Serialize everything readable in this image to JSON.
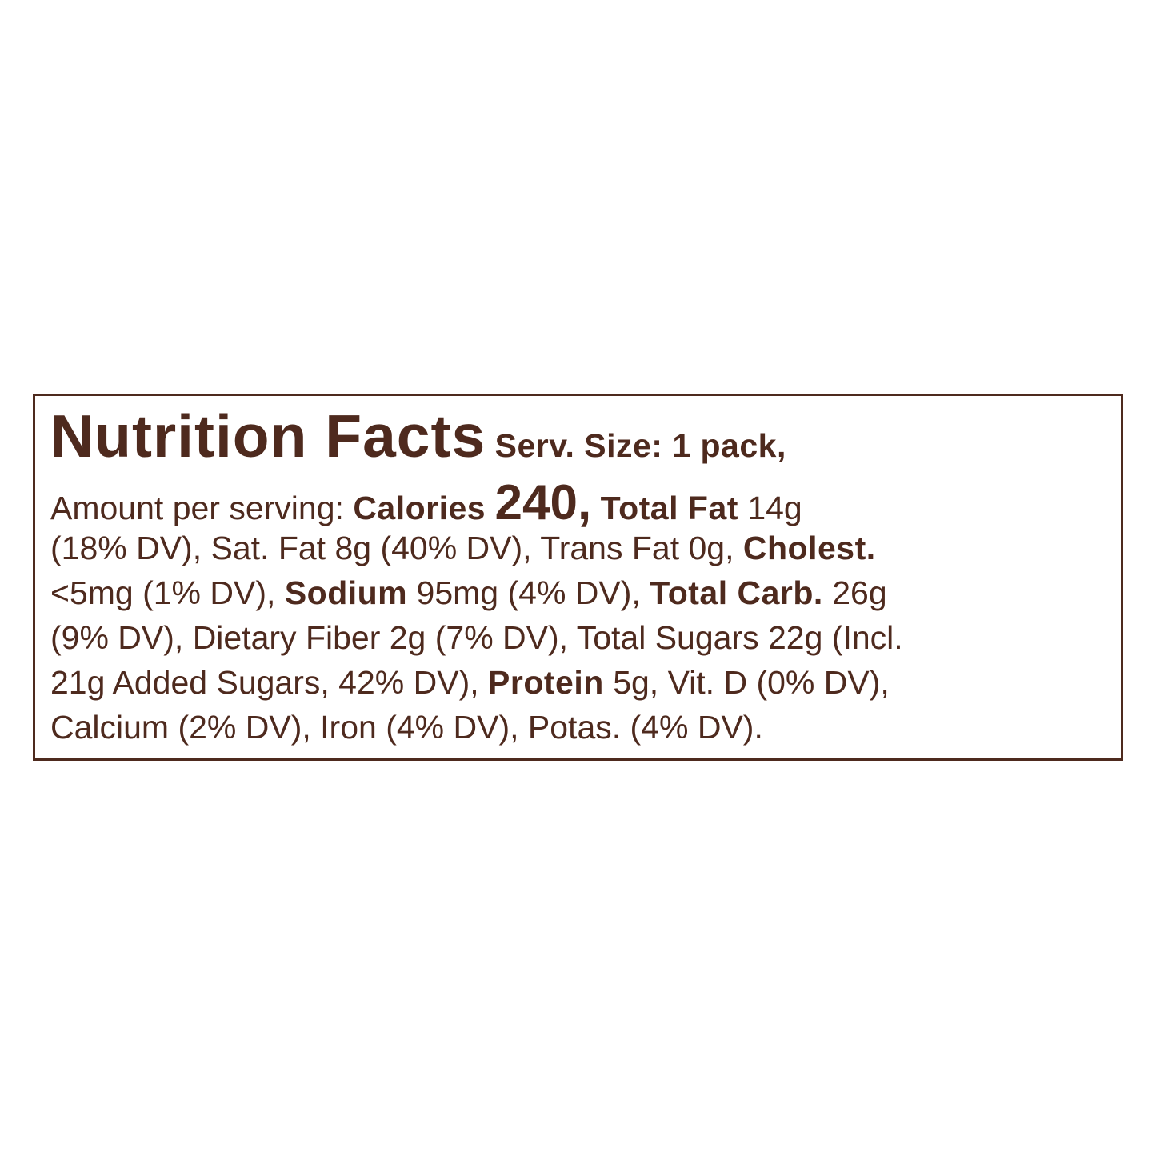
{
  "label": {
    "title": "Nutrition Facts",
    "serving_size": "Serv. Size: 1 pack,",
    "lines": [
      [
        "Amount per serving:",
        "Calories",
        "240,",
        "Total Fat",
        "14g"
      ],
      [
        "(18% DV), Sat. Fat 8g (40% DV), Trans Fat 0g,",
        "Cholest."
      ],
      [
        "<5mg (1% DV),",
        "Sodium",
        "95mg (4% DV),",
        "Total Carb.",
        "26g"
      ],
      [
        "(9% DV), Dietary Fiber 2g (7% DV), Total Sugars 22g (Incl."
      ],
      [
        "21g Added Sugars, 42% DV),",
        "Protein",
        "5g, Vit. D (0% DV),"
      ],
      [
        "Calcium (2% DV), Iron (4% DV), Potas. (4% DV)."
      ]
    ]
  }
}
